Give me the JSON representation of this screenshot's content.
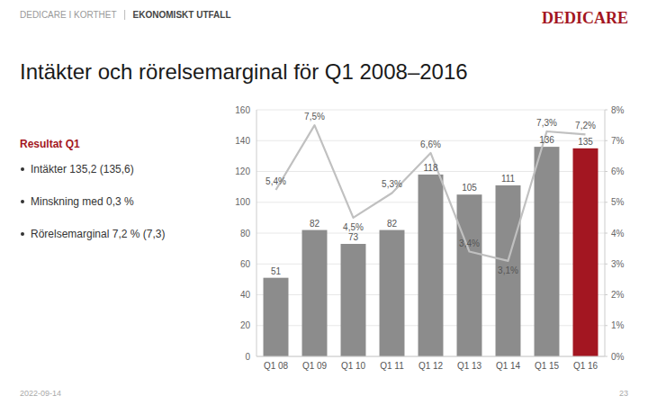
{
  "chart_data": {
    "type": "bar",
    "title": "Intäkter och rörelsemarginal för Q1 2008–2016",
    "categories": [
      "Q1 08",
      "Q1 09",
      "Q1 10",
      "Q1 11",
      "Q1 12",
      "Q1 13",
      "Q1 14",
      "Q1 15",
      "Q1 16"
    ],
    "series": [
      {
        "type": "bar",
        "values": [
          51,
          82,
          73,
          82,
          118,
          105,
          111,
          136,
          135
        ],
        "colors": [
          "#8c8c8c",
          "#8c8c8c",
          "#8c8c8c",
          "#8c8c8c",
          "#8c8c8c",
          "#8c8c8c",
          "#8c8c8c",
          "#8c8c8c",
          "#a31621"
        ]
      },
      {
        "type": "line",
        "axis": "y2",
        "color": "#c0c0c0",
        "values": [
          5.4,
          7.5,
          4.5,
          5.3,
          6.6,
          3.4,
          3.1,
          7.3,
          7.2
        ],
        "value_labels": [
          "5,4%",
          "7,5%",
          "4,5%",
          "5,3%",
          "6,6%",
          "3,4%",
          "3,1%",
          "7,3%",
          "7,2%"
        ]
      }
    ],
    "data_labels": true,
    "ylim": [
      0,
      160
    ],
    "yticks": [
      0,
      20,
      40,
      60,
      80,
      100,
      120,
      140,
      160
    ],
    "y2lim": [
      0,
      8
    ],
    "y2ticks": [
      {
        "value": 0,
        "label": "0%"
      },
      {
        "value": 1,
        "label": "1%"
      },
      {
        "value": 2,
        "label": "2%"
      },
      {
        "value": 3,
        "label": "3%"
      },
      {
        "value": 4,
        "label": "4%"
      },
      {
        "value": 5,
        "label": "5%"
      },
      {
        "value": 6,
        "label": "6%"
      },
      {
        "value": 7,
        "label": "7%"
      },
      {
        "value": 8,
        "label": "8%"
      }
    ],
    "grid": true
  },
  "page": {
    "header_left1": "DEDICARE I KORTHET",
    "header_left2": "EKONOMISKT UTFALL",
    "header_brand": "DEDICARE",
    "brand_color": "#a31621",
    "result_label": "Resultat Q1",
    "accent_color": "#a31621",
    "bullets": [
      "Intäkter 135,2 (135,6)",
      "Minskning med 0,3 %",
      "Rörelsemarginal 7,2 % (7,3)"
    ],
    "footer_left": "2022-09-14",
    "footer_right": "23"
  }
}
